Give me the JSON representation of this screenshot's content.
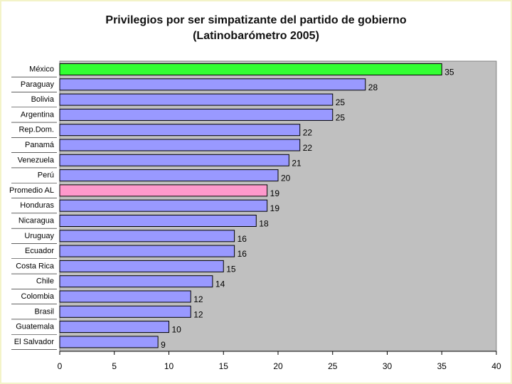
{
  "chart_data": {
    "type": "bar",
    "orientation": "horizontal",
    "title": "Privilegios por ser simpatizante del partido de gobierno",
    "subtitle": "(Latinobarómetro 2005)",
    "categories": [
      "México",
      "Paraguay",
      "Bolivia",
      "Argentina",
      "Rep.Dom.",
      "Panamá",
      "Venezuela",
      "Perú",
      "Promedio AL",
      "Honduras",
      "Nicaragua",
      "Uruguay",
      "Ecuador",
      "Costa Rica",
      "Chile",
      "Colombia",
      "Brasil",
      "Guatemala",
      "El Salvador"
    ],
    "values": [
      35,
      28,
      25,
      25,
      22,
      22,
      21,
      20,
      19,
      19,
      18,
      16,
      16,
      15,
      14,
      12,
      12,
      10,
      9
    ],
    "xlim": [
      0,
      40
    ],
    "xticks": [
      0,
      5,
      10,
      15,
      20,
      25,
      30,
      35,
      40
    ],
    "xlabel": "",
    "ylabel": "",
    "grid": false,
    "colors": {
      "default_bar": "#9999ff",
      "highlight_first": "#33ff33",
      "average_bar": "#ff99cc",
      "plot_background": "#c0c0c0",
      "bar_border": "#000000"
    },
    "highlight": {
      "México": "#33ff33",
      "Promedio AL": "#ff99cc"
    }
  }
}
